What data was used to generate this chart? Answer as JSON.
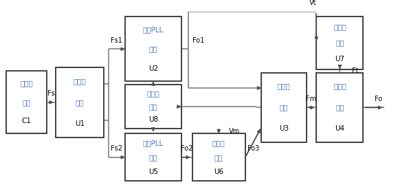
{
  "block_defs": {
    "C1": {
      "bx": 0.013,
      "by": 0.3,
      "bw": 0.1,
      "bh": 0.36
    },
    "U1": {
      "bx": 0.134,
      "by": 0.28,
      "bw": 0.118,
      "bh": 0.4
    },
    "U2": {
      "bx": 0.305,
      "by": 0.6,
      "bw": 0.138,
      "bh": 0.37
    },
    "U8": {
      "bx": 0.305,
      "by": 0.33,
      "bw": 0.138,
      "bh": 0.25
    },
    "U5": {
      "bx": 0.305,
      "by": 0.03,
      "bw": 0.138,
      "bh": 0.27
    },
    "U6": {
      "bx": 0.47,
      "by": 0.03,
      "bw": 0.13,
      "bh": 0.27
    },
    "U3": {
      "bx": 0.64,
      "by": 0.25,
      "bw": 0.11,
      "bh": 0.4
    },
    "U4": {
      "bx": 0.775,
      "by": 0.25,
      "bw": 0.115,
      "bh": 0.4
    },
    "U7": {
      "bx": 0.775,
      "by": 0.67,
      "bw": 0.115,
      "bh": 0.3
    }
  },
  "text_defs": {
    "C1": [
      "参考源",
      "模块",
      "C1"
    ],
    "U1": [
      "功分器",
      "模块",
      "U1"
    ],
    "U2": [
      "第一PLL",
      "模块",
      "U2"
    ],
    "U8": [
      "控制器",
      "模块",
      "U8"
    ],
    "U5": [
      "第一PLL",
      "模块",
      "U5"
    ],
    "U6": [
      "移相器",
      "模块",
      "U6"
    ],
    "U3": [
      "合路器",
      "模块",
      "U3"
    ],
    "U4": [
      "耦合器",
      "模块",
      "U4"
    ],
    "U7": [
      "检波器",
      "模块",
      "U7"
    ]
  },
  "bg_color": "#ffffff",
  "block_edge_color": "#404040",
  "block_lw": 1.4,
  "text_color_cn": "#4472C4",
  "text_color_en": "#000000",
  "arrow_color": "#505050",
  "line_color": "#808080",
  "fig_w": 5.95,
  "fig_h": 2.72
}
